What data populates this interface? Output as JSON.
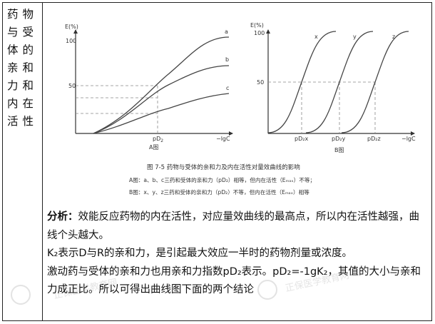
{
  "left_label": "药物与受体的亲和力和内在活性",
  "figure": {
    "graphA": {
      "y_axis": "E(%)",
      "y_tick_100": "100",
      "y_tick_50": "50",
      "x_tick_pd2": "pD",
      "x_tick_pd2_sub": "2",
      "x_tick_lgc": "−lgC",
      "caption": "A图",
      "curve_a": "a",
      "curve_b": "b",
      "curve_c": "c"
    },
    "graphB": {
      "y_axis": "E(%)",
      "y_tick_100": "100",
      "y_tick_50": "50",
      "x_tick_pd2x": "pD₂x",
      "x_tick_pd2y": "pD₂y",
      "x_tick_pd2z": "pD₂z",
      "x_tick_lgc": "−lgC",
      "caption": "B图",
      "curve_x": "x",
      "curve_y": "y",
      "curve_z": "z"
    },
    "title": "图 7-5   药物与受体的亲和力及内在活性对量效曲线的影响",
    "note_a": "A图：a、b、c三药和受体的亲和力（pD₂）相等，但内在活性（Eₘₐₓ）不等；",
    "note_b": "B图：x、y、z三药和受体的亲和力（pD₂）不等，但内在活性（Eₘₐₓ）相等"
  },
  "analysis": {
    "head": "分析：",
    "p1": "效能反应药物的内在活性，对应量效曲线的最高点，所以内在活性越强，曲线个头越大。",
    "p2": "K₂表示D与R的亲和力，是引起最大效应一半时的药物剂量或浓度。",
    "p3": "激动药与受体的亲和力也用亲和力指数pD₂表示。pD₂=-1gK₂，其值的大小与亲和力成正比。所以可得出曲线图下面的两个结论"
  },
  "watermarks": [
    "正保医学教育网",
    "正保医学教育网"
  ]
}
